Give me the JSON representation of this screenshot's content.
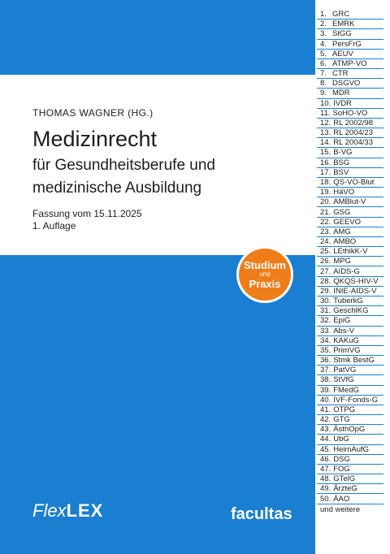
{
  "cover": {
    "editor": "THOMAS WAGNER (HG.)",
    "title": "Medizinrecht",
    "subtitle_line1": "für Gesundheitsberufe und",
    "subtitle_line2": "medizinische Ausbildung",
    "edition_date": "Fassung vom 15.11.2025",
    "edition_number": "1. Auflage",
    "badge_line1": "Studium",
    "badge_line2": "und",
    "badge_line3": "Praxis",
    "logo_flex_part1": "Flex",
    "logo_flex_part2": "LEX",
    "publisher": "facultas"
  },
  "colors": {
    "brand_blue": "#1a7fd0",
    "badge_orange": "#ef7d1a"
  },
  "register": {
    "items": [
      {
        "num": "1.",
        "label": "GRC"
      },
      {
        "num": "2.",
        "label": "EMRK"
      },
      {
        "num": "3.",
        "label": "StGG"
      },
      {
        "num": "4.",
        "label": "PersFrG"
      },
      {
        "num": "5.",
        "label": "AEUV"
      },
      {
        "num": "6.",
        "label": "ATMP-VO"
      },
      {
        "num": "7.",
        "label": "CTR"
      },
      {
        "num": "8.",
        "label": "DSGVO"
      },
      {
        "num": "9.",
        "label": "MDR"
      },
      {
        "num": "10.",
        "label": "IVDR"
      },
      {
        "num": "11.",
        "label": "SoHO-VO"
      },
      {
        "num": "12.",
        "label": "RL 2002/98"
      },
      {
        "num": "13.",
        "label": "RL 2004/23"
      },
      {
        "num": "14.",
        "label": "RL 2004/33"
      },
      {
        "num": "15.",
        "label": "B-VG"
      },
      {
        "num": "16.",
        "label": "BSG"
      },
      {
        "num": "17.",
        "label": "BSV"
      },
      {
        "num": "18.",
        "label": "QS-VO-Blut"
      },
      {
        "num": "19.",
        "label": "HäVO"
      },
      {
        "num": "20.",
        "label": "AMBlut-V"
      },
      {
        "num": "21.",
        "label": "GSG"
      },
      {
        "num": "22.",
        "label": "GEEVO"
      },
      {
        "num": "23.",
        "label": "AMG"
      },
      {
        "num": "24.",
        "label": "AMBO"
      },
      {
        "num": "25.",
        "label": "LEthikK-V"
      },
      {
        "num": "26.",
        "label": "MPG"
      },
      {
        "num": "27.",
        "label": "AIDS-G"
      },
      {
        "num": "28.",
        "label": "QKQS-HIV-V"
      },
      {
        "num": "29.",
        "label": "INIE-AIDS-V"
      },
      {
        "num": "30.",
        "label": "TuberkG"
      },
      {
        "num": "31.",
        "label": "GeschlKG"
      },
      {
        "num": "32.",
        "label": "EpiG"
      },
      {
        "num": "33.",
        "label": "Abs-V"
      },
      {
        "num": "34.",
        "label": "KAKuG"
      },
      {
        "num": "35.",
        "label": "PrimVG"
      },
      {
        "num": "36.",
        "label": "Stmk BestG"
      },
      {
        "num": "37.",
        "label": "PatVG"
      },
      {
        "num": "38.",
        "label": "StVfG"
      },
      {
        "num": "39.",
        "label": "FMedG"
      },
      {
        "num": "40.",
        "label": "IVF-Fonds-G"
      },
      {
        "num": "41.",
        "label": "OTPG"
      },
      {
        "num": "42.",
        "label": "GTG"
      },
      {
        "num": "43.",
        "label": "ÄsthOpG"
      },
      {
        "num": "44.",
        "label": "UbG"
      },
      {
        "num": "45.",
        "label": "HeimAufG"
      },
      {
        "num": "46.",
        "label": "DSG"
      },
      {
        "num": "47.",
        "label": "FOG"
      },
      {
        "num": "48.",
        "label": "GTelG"
      },
      {
        "num": "49.",
        "label": "ÄrzteG"
      },
      {
        "num": "50.",
        "label": "ÄAO"
      }
    ],
    "footer": "und weitere"
  }
}
